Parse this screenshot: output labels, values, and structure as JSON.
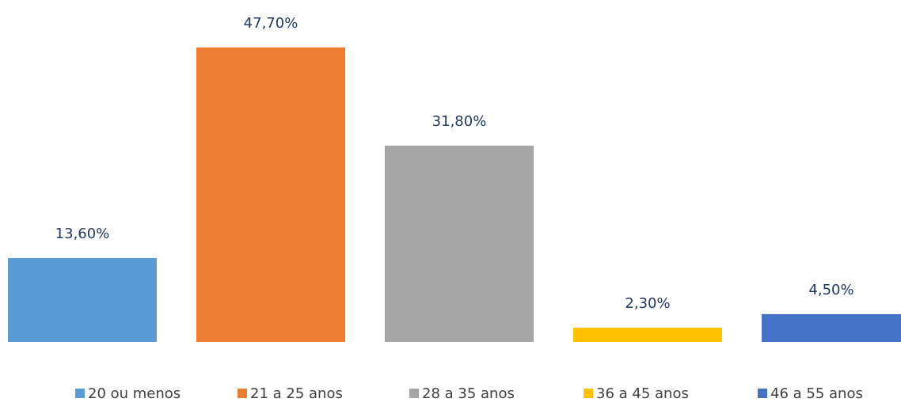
{
  "chart_data": {
    "type": "bar",
    "categories": [
      "20 ou menos",
      "21 a 25 anos",
      "28 a 35 anos",
      "36 a 45 anos",
      "46 a 55 anos"
    ],
    "values": [
      13.6,
      47.7,
      31.8,
      2.3,
      4.5
    ],
    "value_labels": [
      "13,60%",
      "47,70%",
      "31,80%",
      "2,30%",
      "4,50%"
    ],
    "colors": [
      "#5b9bd5",
      "#ed7d31",
      "#a5a5a5",
      "#ffc000",
      "#4472c4"
    ]
  }
}
